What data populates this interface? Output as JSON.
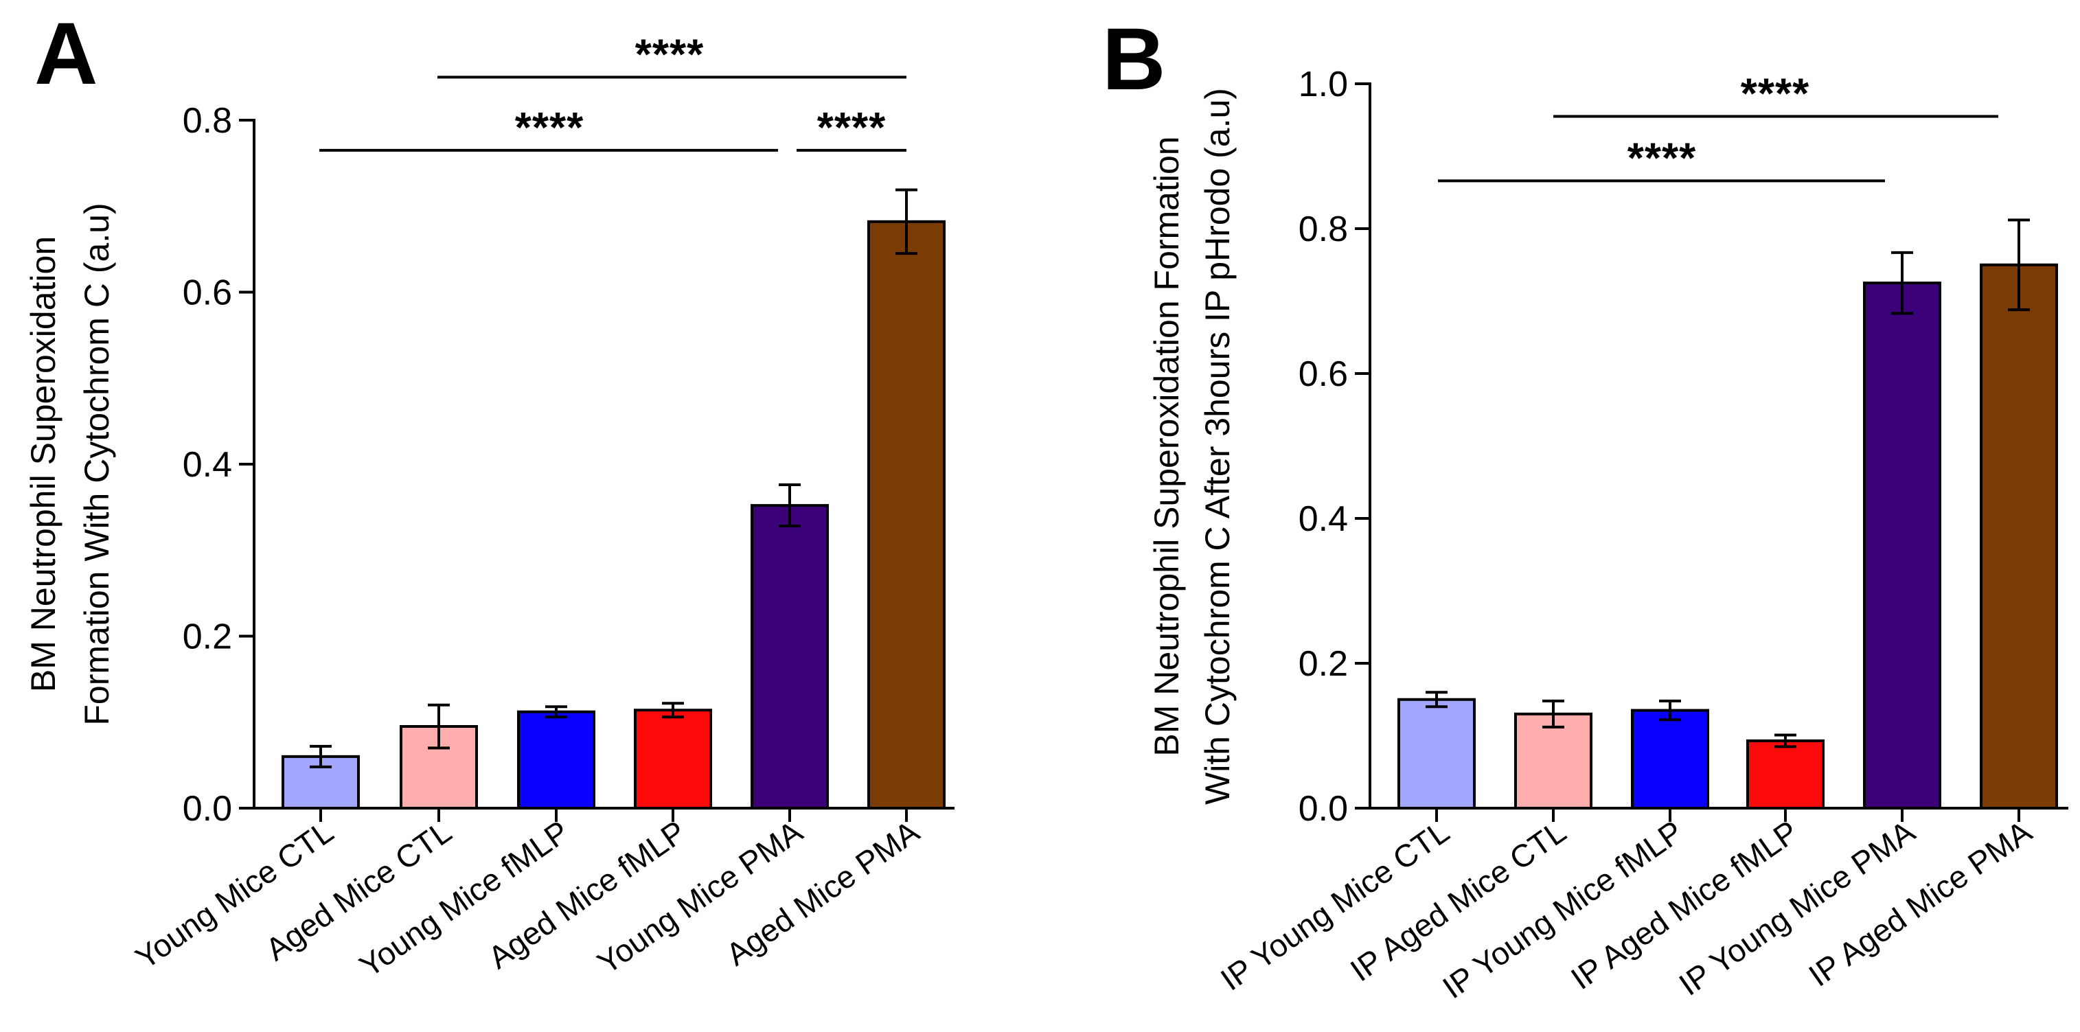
{
  "chart_data": [
    {
      "type": "bar",
      "panel": "A",
      "ylabel_lines": [
        "BM Neutrophil Superoxidation",
        "Formation With Cytochrom C (a.u)"
      ],
      "ylim": [
        0,
        0.8
      ],
      "yticks": [
        "0.0",
        "0.2",
        "0.4",
        "0.6",
        "0.8"
      ],
      "ytick_values": [
        0,
        0.2,
        0.4,
        0.6,
        0.8
      ],
      "categories": [
        "Young Mice CTL",
        "Aged Mice CTL",
        "Young Mice fMLP",
        "Aged Mice fMLP",
        "Young Mice PMA",
        "Aged Mice PMA"
      ],
      "values": [
        0.06,
        0.095,
        0.112,
        0.114,
        0.352,
        0.682
      ],
      "errors": [
        0.012,
        0.025,
        0.006,
        0.008,
        0.024,
        0.037
      ],
      "colors": [
        "#a3a6ff",
        "#ffaeae",
        "#0a00ff",
        "#ff0a0a",
        "#3c0078",
        "#7a3b05"
      ],
      "significance": [
        {
          "from": 0,
          "to": 4,
          "label": "****",
          "level": 0.765
        },
        {
          "from": 4,
          "to": 5,
          "label": "****",
          "level": 0.765
        },
        {
          "from": 1,
          "to": 5,
          "label": "****",
          "level": 0.85
        }
      ]
    },
    {
      "type": "bar",
      "panel": "B",
      "ylabel_lines": [
        "BM Neutrophil Superoxidation Formation",
        "With Cytochrom C After 3hours IP pHrodo (a.u)"
      ],
      "ylim": [
        0,
        1.0
      ],
      "yticks": [
        "0.0",
        "0.2",
        "0.4",
        "0.6",
        "0.8",
        "1.0"
      ],
      "ytick_values": [
        0,
        0.2,
        0.4,
        0.6,
        0.8,
        1.0
      ],
      "categories": [
        "IP Young Mice CTL",
        "IP Aged Mice CTL",
        "IP Young Mice fMLP",
        "IP Aged Mice fMLP",
        "IP Young Mice PMA",
        "IP Aged Mice PMA"
      ],
      "values": [
        0.15,
        0.13,
        0.135,
        0.093,
        0.725,
        0.75
      ],
      "errors": [
        0.01,
        0.018,
        0.013,
        0.008,
        0.042,
        0.062
      ],
      "colors": [
        "#a3a6ff",
        "#ffaeae",
        "#0a00ff",
        "#ff0a0a",
        "#3c0078",
        "#7a3b05"
      ],
      "significance": [
        {
          "from": 0,
          "to": 4,
          "label": "****",
          "level": 0.866
        },
        {
          "from": 1,
          "to": 5,
          "label": "****",
          "level": 0.955
        }
      ]
    }
  ]
}
